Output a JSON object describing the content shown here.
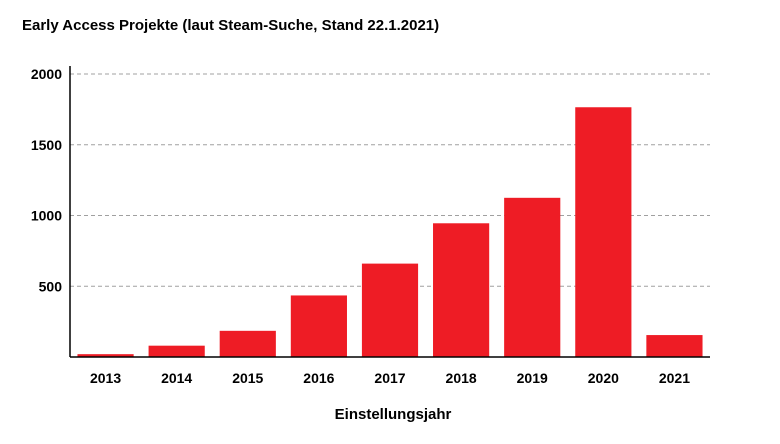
{
  "chart_data": {
    "type": "bar",
    "title": "Early Access Projekte  (laut Steam-Suche, Stand 22.1.2021)",
    "xlabel": "Einstellungsjahr",
    "ylabel": "",
    "categories": [
      "2013",
      "2014",
      "2015",
      "2016",
      "2017",
      "2018",
      "2019",
      "2020",
      "2021"
    ],
    "values": [
      20,
      80,
      185,
      435,
      660,
      945,
      1125,
      1765,
      155
    ],
    "ylim": [
      0,
      2000
    ],
    "yticks": [
      500,
      1000,
      1500,
      2000
    ],
    "grid": true,
    "legend": "none",
    "bar_color": "#ee1c25",
    "grid_color": "#a0a0a0"
  }
}
